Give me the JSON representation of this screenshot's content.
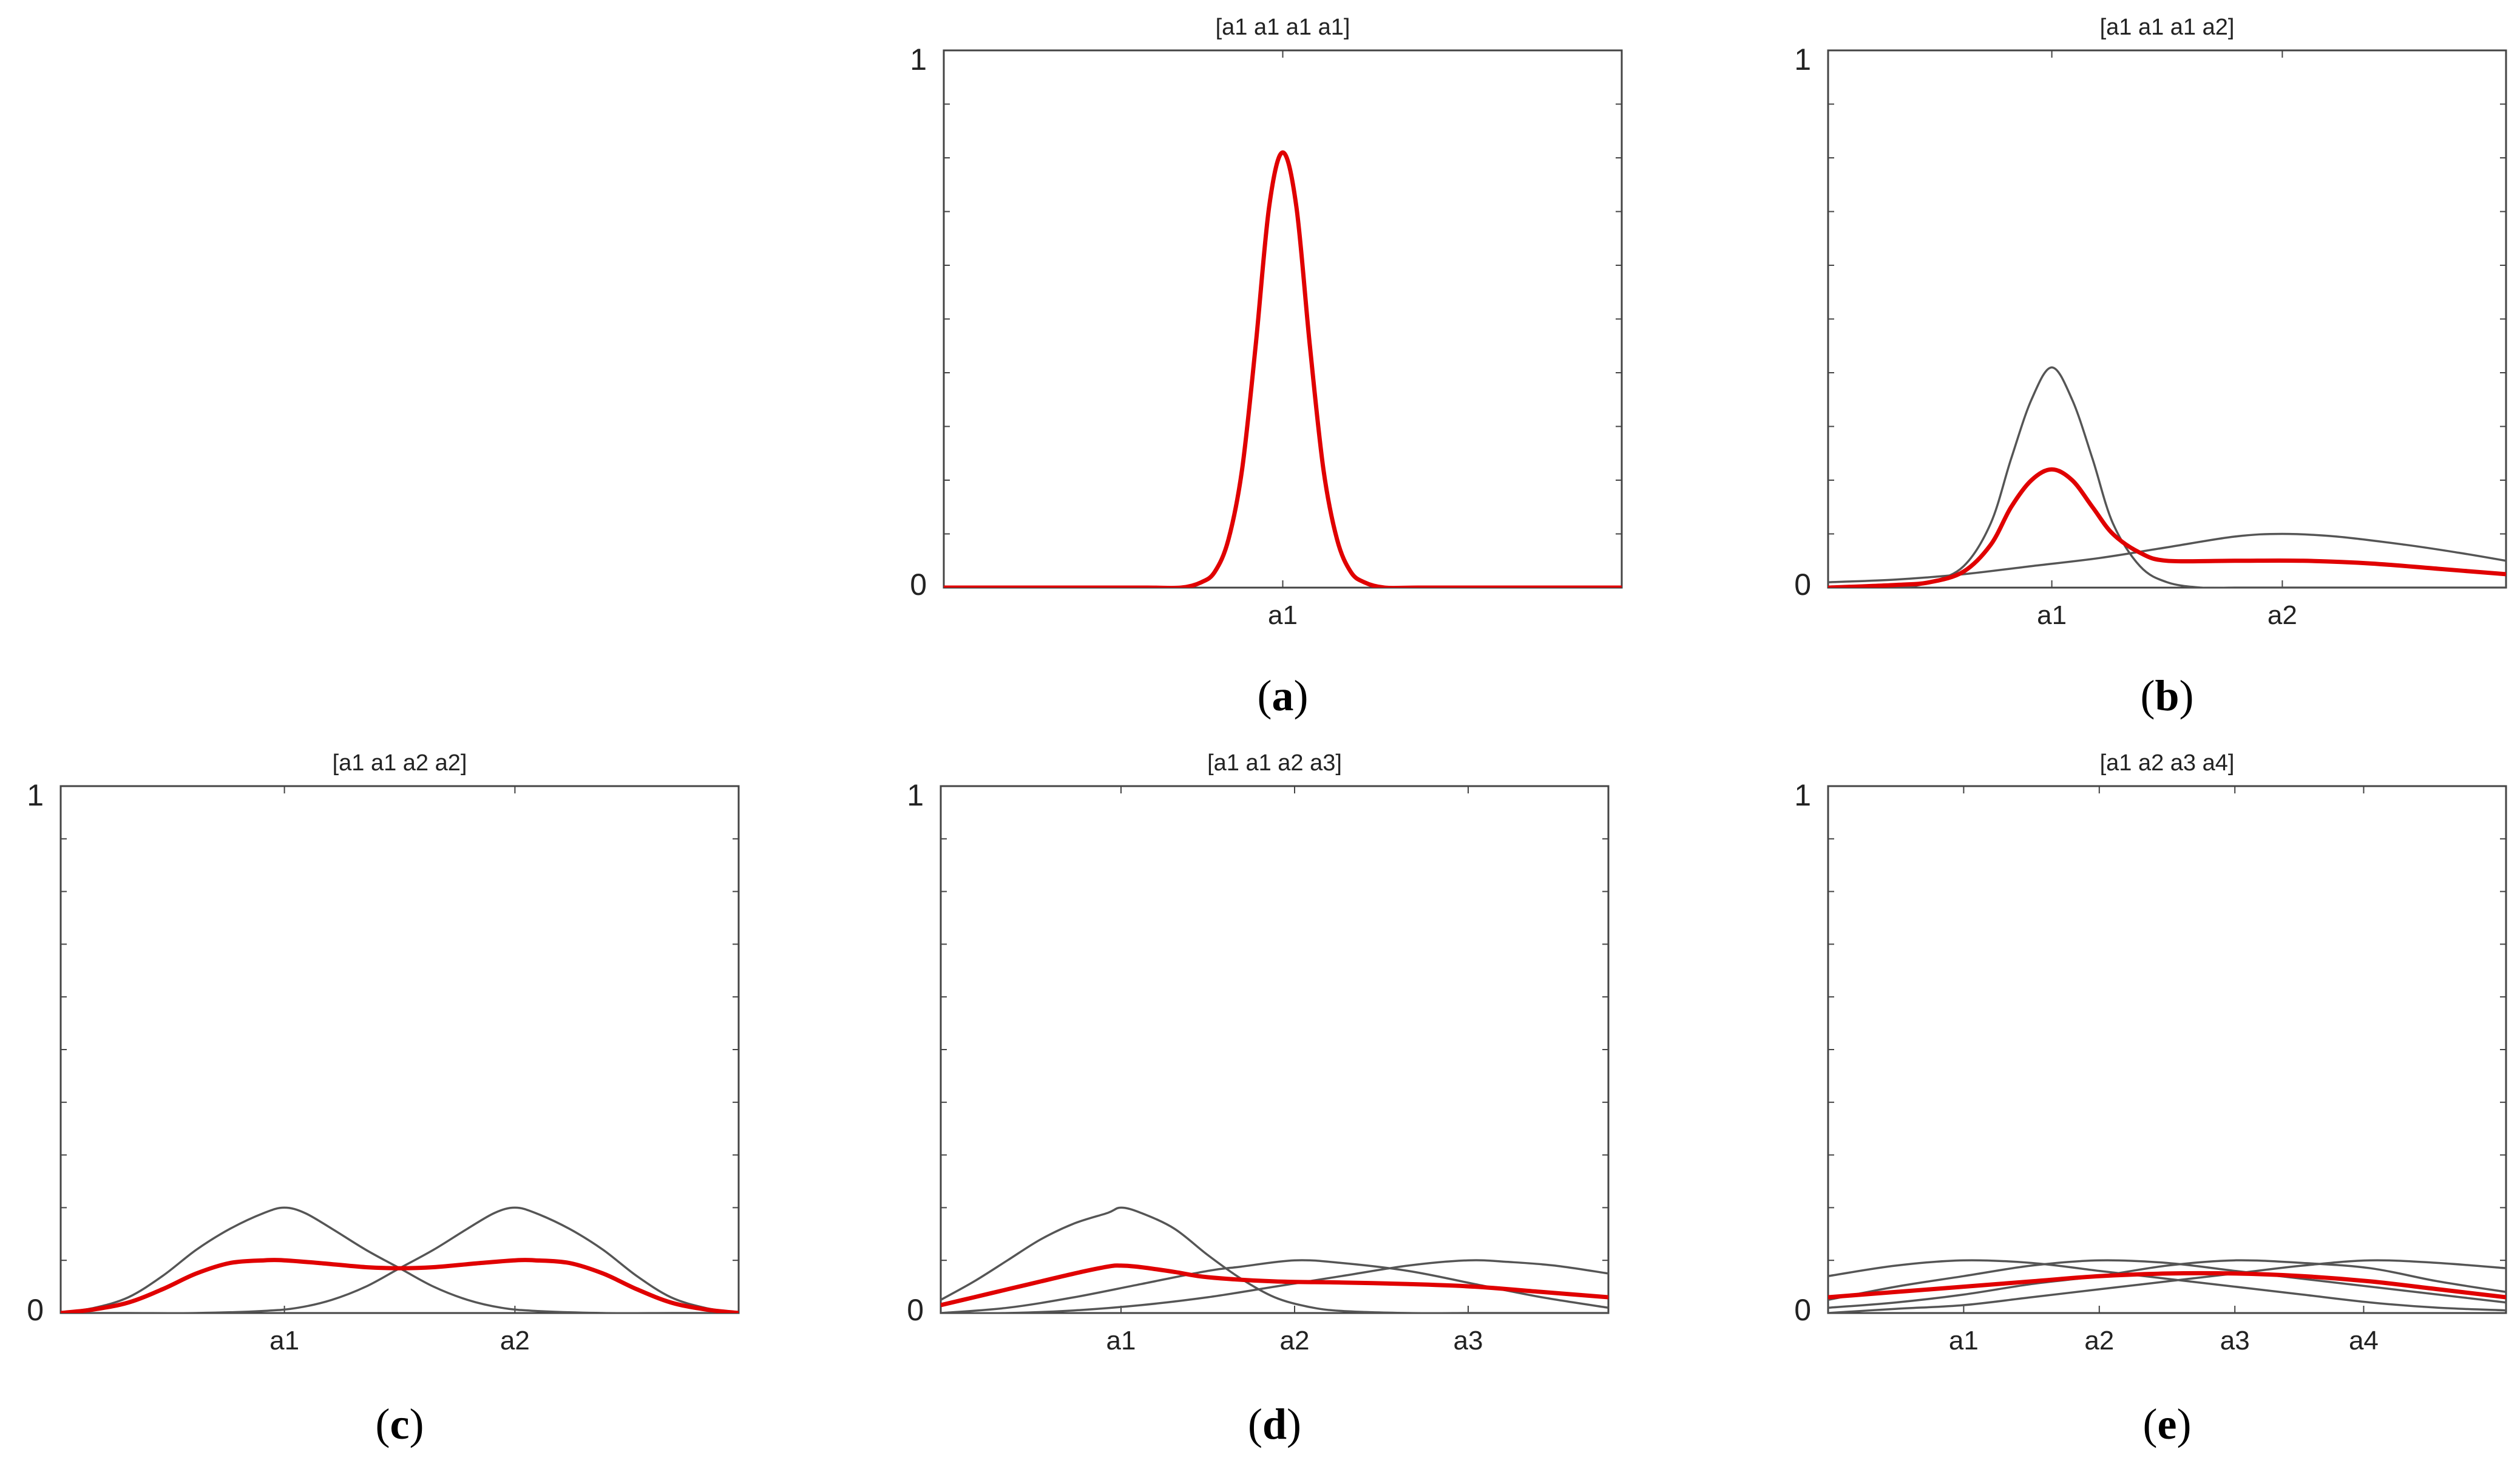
{
  "chart_data": [
    {
      "panel": "a",
      "type": "line",
      "title": "[a1 a1 a1 a1]",
      "xticks": [
        "a1"
      ],
      "yticks": [
        "0",
        "1"
      ],
      "ylim": [
        0,
        1
      ],
      "xlim": [
        0,
        1
      ],
      "tick_x": [
        0.5
      ],
      "component_color": "#555555",
      "series_color": "#e00000",
      "components": [],
      "series": [
        {
          "x": [
            0,
            0.2,
            0.3,
            0.35,
            0.38,
            0.4,
            0.42,
            0.44,
            0.46,
            0.48,
            0.5,
            0.52,
            0.54,
            0.56,
            0.58,
            0.6,
            0.62,
            0.65,
            0.7,
            0.8,
            1
          ],
          "values": [
            0,
            0,
            0,
            0,
            0.01,
            0.03,
            0.09,
            0.22,
            0.45,
            0.71,
            0.81,
            0.71,
            0.45,
            0.22,
            0.09,
            0.03,
            0.01,
            0,
            0,
            0,
            0
          ]
        }
      ]
    },
    {
      "panel": "b",
      "type": "line",
      "title": "[a1 a1 a1 a2]",
      "xticks": [
        "a1",
        "a2"
      ],
      "yticks": [
        "0",
        "1"
      ],
      "ylim": [
        0,
        1
      ],
      "xlim": [
        0,
        1
      ],
      "tick_x": [
        0.33,
        0.67
      ],
      "component_color": "#555555",
      "series_color": "#e00000",
      "components": [
        {
          "x": [
            0,
            0.1,
            0.15,
            0.2,
            0.24,
            0.27,
            0.3,
            0.33,
            0.36,
            0.39,
            0.42,
            0.46,
            0.5,
            0.55,
            0.6,
            0.7,
            1
          ],
          "values": [
            0,
            0,
            0.01,
            0.04,
            0.12,
            0.24,
            0.35,
            0.41,
            0.35,
            0.24,
            0.12,
            0.04,
            0.01,
            0,
            0,
            0,
            0
          ]
        },
        {
          "x": [
            0,
            0.1,
            0.2,
            0.3,
            0.4,
            0.5,
            0.6,
            0.67,
            0.75,
            0.85,
            0.93,
            1
          ],
          "values": [
            0.01,
            0.015,
            0.025,
            0.04,
            0.055,
            0.075,
            0.095,
            0.1,
            0.095,
            0.08,
            0.065,
            0.05
          ]
        }
      ],
      "series": [
        {
          "x": [
            0,
            0.1,
            0.15,
            0.2,
            0.24,
            0.27,
            0.3,
            0.33,
            0.36,
            0.39,
            0.42,
            0.46,
            0.5,
            0.6,
            0.7,
            0.8,
            0.9,
            1
          ],
          "values": [
            0,
            0.005,
            0.01,
            0.03,
            0.08,
            0.15,
            0.2,
            0.22,
            0.2,
            0.15,
            0.1,
            0.065,
            0.05,
            0.05,
            0.05,
            0.045,
            0.035,
            0.025
          ]
        }
      ]
    },
    {
      "panel": "c",
      "type": "line",
      "title": "[a1 a1 a2 a2]",
      "xticks": [
        "a1",
        "a2"
      ],
      "yticks": [
        "0",
        "1"
      ],
      "ylim": [
        0,
        1
      ],
      "xlim": [
        0,
        1
      ],
      "tick_x": [
        0.33,
        0.67
      ],
      "component_color": "#555555",
      "series_color": "#e00000",
      "components": [
        {
          "x": [
            0,
            0.05,
            0.1,
            0.15,
            0.2,
            0.25,
            0.3,
            0.33,
            0.36,
            0.4,
            0.45,
            0.5,
            0.55,
            0.6,
            0.65,
            0.7,
            0.8,
            0.9,
            1
          ],
          "values": [
            0,
            0.01,
            0.03,
            0.07,
            0.12,
            0.16,
            0.19,
            0.2,
            0.19,
            0.16,
            0.12,
            0.085,
            0.05,
            0.025,
            0.01,
            0.004,
            0,
            0,
            0
          ]
        },
        {
          "x": [
            0,
            0.1,
            0.2,
            0.3,
            0.35,
            0.4,
            0.45,
            0.5,
            0.55,
            0.6,
            0.64,
            0.67,
            0.7,
            0.75,
            0.8,
            0.85,
            0.9,
            0.95,
            1
          ],
          "values": [
            0,
            0,
            0,
            0.004,
            0.01,
            0.025,
            0.05,
            0.085,
            0.12,
            0.16,
            0.19,
            0.2,
            0.19,
            0.16,
            0.12,
            0.07,
            0.03,
            0.01,
            0
          ]
        }
      ],
      "series": [
        {
          "x": [
            0,
            0.05,
            0.1,
            0.15,
            0.2,
            0.25,
            0.3,
            0.33,
            0.38,
            0.45,
            0.5,
            0.55,
            0.62,
            0.67,
            0.7,
            0.75,
            0.8,
            0.85,
            0.9,
            0.95,
            1
          ],
          "values": [
            0,
            0.007,
            0.02,
            0.045,
            0.075,
            0.095,
            0.1,
            0.1,
            0.095,
            0.087,
            0.085,
            0.087,
            0.095,
            0.1,
            0.1,
            0.095,
            0.075,
            0.045,
            0.02,
            0.007,
            0
          ]
        }
      ]
    },
    {
      "panel": "d",
      "type": "line",
      "title": "[a1 a1 a2 a3]",
      "xticks": [
        "a1",
        "a2",
        "a3"
      ],
      "yticks": [
        "0",
        "1"
      ],
      "ylim": [
        0,
        1
      ],
      "xlim": [
        0,
        1
      ],
      "tick_x": [
        0.27,
        0.53,
        0.79
      ],
      "component_color": "#555555",
      "series_color": "#e00000",
      "components": [
        {
          "x": [
            0,
            0.05,
            0.1,
            0.15,
            0.2,
            0.25,
            0.27,
            0.3,
            0.35,
            0.4,
            0.45,
            0.5,
            0.55,
            0.6,
            0.7,
            0.8,
            0.9,
            1
          ],
          "values": [
            0.025,
            0.06,
            0.1,
            0.14,
            0.17,
            0.19,
            0.2,
            0.19,
            0.16,
            0.11,
            0.065,
            0.03,
            0.012,
            0.004,
            0,
            0,
            0,
            0
          ]
        },
        {
          "x": [
            0,
            0.1,
            0.2,
            0.3,
            0.4,
            0.45,
            0.53,
            0.6,
            0.7,
            0.8,
            0.9,
            1
          ],
          "values": [
            0,
            0.01,
            0.03,
            0.055,
            0.08,
            0.088,
            0.1,
            0.095,
            0.08,
            0.055,
            0.03,
            0.01
          ]
        },
        {
          "x": [
            0,
            0.1,
            0.2,
            0.3,
            0.4,
            0.5,
            0.6,
            0.7,
            0.79,
            0.85,
            0.92,
            1
          ],
          "values": [
            0,
            0,
            0.005,
            0.015,
            0.03,
            0.05,
            0.07,
            0.09,
            0.1,
            0.097,
            0.09,
            0.075
          ]
        }
      ],
      "series": [
        {
          "x": [
            0,
            0.05,
            0.1,
            0.15,
            0.2,
            0.25,
            0.27,
            0.3,
            0.35,
            0.4,
            0.5,
            0.6,
            0.7,
            0.8,
            0.9,
            1
          ],
          "values": [
            0.015,
            0.03,
            0.045,
            0.06,
            0.075,
            0.088,
            0.09,
            0.087,
            0.078,
            0.068,
            0.06,
            0.058,
            0.055,
            0.05,
            0.04,
            0.03
          ]
        }
      ]
    },
    {
      "panel": "e",
      "type": "line",
      "title": "[a1 a2 a3 a4]",
      "xticks": [
        "a1",
        "a2",
        "a3",
        "a4"
      ],
      "yticks": [
        "0",
        "1"
      ],
      "ylim": [
        0,
        1
      ],
      "xlim": [
        0,
        1
      ],
      "tick_x": [
        0.2,
        0.4,
        0.6,
        0.79
      ],
      "component_color": "#555555",
      "series_color": "#e00000",
      "components": [
        {
          "x": [
            0,
            0.1,
            0.2,
            0.3,
            0.4,
            0.5,
            0.6,
            0.7,
            0.8,
            0.9,
            1
          ],
          "values": [
            0.07,
            0.09,
            0.1,
            0.095,
            0.08,
            0.065,
            0.05,
            0.035,
            0.02,
            0.01,
            0.005
          ]
        },
        {
          "x": [
            0,
            0.1,
            0.2,
            0.3,
            0.4,
            0.5,
            0.6,
            0.7,
            0.8,
            0.9,
            1
          ],
          "values": [
            0.025,
            0.05,
            0.07,
            0.09,
            0.1,
            0.095,
            0.08,
            0.065,
            0.05,
            0.035,
            0.02
          ]
        },
        {
          "x": [
            0,
            0.1,
            0.2,
            0.3,
            0.4,
            0.5,
            0.6,
            0.7,
            0.8,
            0.9,
            1
          ],
          "values": [
            0.01,
            0.02,
            0.035,
            0.055,
            0.07,
            0.09,
            0.1,
            0.095,
            0.085,
            0.06,
            0.04
          ]
        },
        {
          "x": [
            0,
            0.1,
            0.2,
            0.3,
            0.4,
            0.5,
            0.6,
            0.7,
            0.8,
            0.9,
            1
          ],
          "values": [
            0,
            0.008,
            0.015,
            0.03,
            0.045,
            0.06,
            0.075,
            0.09,
            0.1,
            0.095,
            0.085
          ]
        }
      ],
      "series": [
        {
          "x": [
            0,
            0.1,
            0.2,
            0.3,
            0.4,
            0.5,
            0.6,
            0.7,
            0.8,
            0.9,
            1
          ],
          "values": [
            0.03,
            0.04,
            0.05,
            0.06,
            0.07,
            0.075,
            0.075,
            0.07,
            0.06,
            0.045,
            0.03
          ]
        }
      ]
    }
  ],
  "captions": [
    "a",
    "b",
    "c",
    "d",
    "e"
  ]
}
